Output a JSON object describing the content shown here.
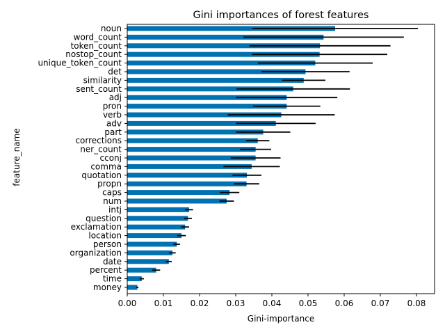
{
  "chart_data": {
    "type": "bar",
    "orientation": "horizontal",
    "title": "Gini importances of forest features",
    "xlabel": "Gini-importance",
    "ylabel": "feature_name",
    "xlim": [
      0,
      0.085
    ],
    "xticks": [
      "0.00",
      "0.01",
      "0.02",
      "0.03",
      "0.04",
      "0.05",
      "0.06",
      "0.07",
      "0.08"
    ],
    "xtick_values": [
      0,
      0.01,
      0.02,
      0.03,
      0.04,
      0.05,
      0.06,
      0.07,
      0.08
    ],
    "grid": false,
    "bar_color": "#0072b2",
    "error_color": "#000000",
    "categories": [
      "noun",
      "word_count",
      "token_count",
      "nostop_count",
      "unique_token_count",
      "det",
      "similarity",
      "sent_count",
      "adj",
      "pron",
      "verb",
      "adv",
      "part",
      "corrections",
      "ner_count",
      "cconj",
      "comma",
      "quotation",
      "propn",
      "caps",
      "num",
      "intj",
      "question",
      "exclamation",
      "location",
      "person",
      "organization",
      "date",
      "percent",
      "time",
      "money"
    ],
    "values": [
      0.0575,
      0.0543,
      0.0533,
      0.0532,
      0.052,
      0.0493,
      0.0488,
      0.0459,
      0.0441,
      0.0441,
      0.0426,
      0.0411,
      0.0376,
      0.0361,
      0.0355,
      0.0355,
      0.0344,
      0.0331,
      0.033,
      0.0283,
      0.0275,
      0.0171,
      0.0168,
      0.016,
      0.015,
      0.0137,
      0.0125,
      0.0115,
      0.008,
      0.004,
      0.0028
    ],
    "errors": [
      0.0229,
      0.0222,
      0.0195,
      0.0187,
      0.0159,
      0.0122,
      0.006,
      0.0157,
      0.014,
      0.0093,
      0.0148,
      0.011,
      0.0075,
      0.0032,
      0.0043,
      0.0069,
      0.0078,
      0.004,
      0.0035,
      0.0027,
      0.002,
      0.0011,
      0.0011,
      0.0011,
      0.0012,
      0.0009,
      0.0009,
      0.0008,
      0.0011,
      0.0006,
      0.0003
    ]
  }
}
